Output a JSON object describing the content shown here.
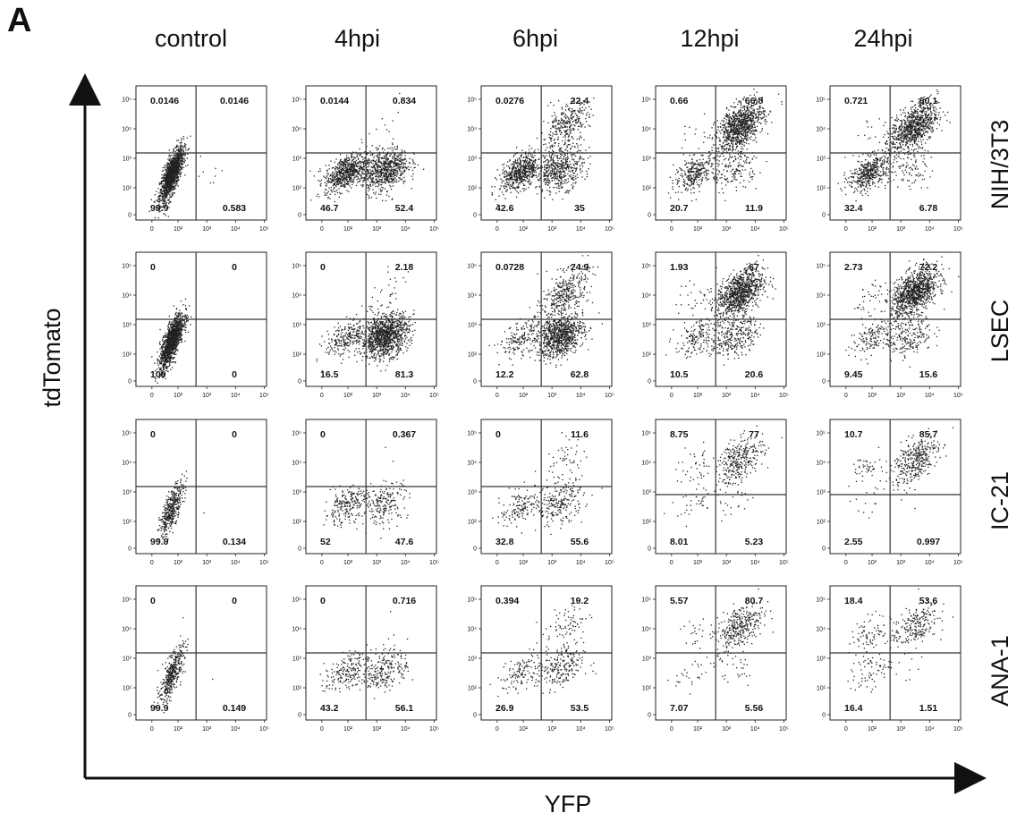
{
  "panel_letter": "A",
  "chart_data": {
    "type": "scatter",
    "subtype": "flow-cytometry-quadrant-grid",
    "xlabel": "YFP",
    "ylabel": "tdTomato",
    "columns": [
      "control",
      "4hpi",
      "6hpi",
      "12hpi",
      "24hpi"
    ],
    "rows": [
      "NIH/3T3",
      "LSEC",
      "IC-21",
      "ANA-1"
    ],
    "x_ticks": [
      "0",
      "10²",
      "10³",
      "10⁴",
      "10⁵"
    ],
    "y_ticks": [
      "0",
      "10²",
      "10³",
      "10⁴",
      "10⁵"
    ],
    "quadrant_order": [
      "upper-left",
      "upper-right",
      "lower-left",
      "lower-right"
    ],
    "panels": [
      [
        {
          "ul": "0.0146",
          "ur": "0.0146",
          "ll": "99.9",
          "lr": "0.583"
        },
        {
          "ul": "0.0144",
          "ur": "0.834",
          "ll": "46.7",
          "lr": "52.4"
        },
        {
          "ul": "0.0276",
          "ur": "22.4",
          "ll": "42.6",
          "lr": "35"
        },
        {
          "ul": "0.66",
          "ur": "66.8",
          "ll": "20.7",
          "lr": "11.9"
        },
        {
          "ul": "0.721",
          "ur": "60.1",
          "ll": "32.4",
          "lr": "6.78"
        }
      ],
      [
        {
          "ul": "0",
          "ur": "0",
          "ll": "100",
          "lr": "0"
        },
        {
          "ul": "0",
          "ur": "2.18",
          "ll": "16.5",
          "lr": "81.3"
        },
        {
          "ul": "0.0728",
          "ur": "24.9",
          "ll": "12.2",
          "lr": "62.8"
        },
        {
          "ul": "1.93",
          "ur": "67",
          "ll": "10.5",
          "lr": "20.6"
        },
        {
          "ul": "2.73",
          "ur": "72.2",
          "ll": "9.45",
          "lr": "15.6"
        }
      ],
      [
        {
          "ul": "0",
          "ur": "0",
          "ll": "99.9",
          "lr": "0.134"
        },
        {
          "ul": "0",
          "ur": "0.367",
          "ll": "52",
          "lr": "47.6"
        },
        {
          "ul": "0",
          "ur": "11.6",
          "ll": "32.8",
          "lr": "55.6"
        },
        {
          "ul": "8.75",
          "ur": "77",
          "ll": "8.01",
          "lr": "5.23"
        },
        {
          "ul": "10.7",
          "ur": "85.7",
          "ll": "2.55",
          "lr": "0.997"
        }
      ],
      [
        {
          "ul": "0",
          "ur": "0",
          "ll": "99.9",
          "lr": "0.149"
        },
        {
          "ul": "0",
          "ur": "0.716",
          "ll": "43.2",
          "lr": "56.1"
        },
        {
          "ul": "0.394",
          "ur": "19.2",
          "ll": "26.9",
          "lr": "53.5"
        },
        {
          "ul": "5.57",
          "ur": "80.7",
          "ll": "7.07",
          "lr": "5.56"
        },
        {
          "ul": "18.4",
          "ur": "53.6",
          "ll": "16.4",
          "lr": "1.51"
        }
      ]
    ]
  }
}
